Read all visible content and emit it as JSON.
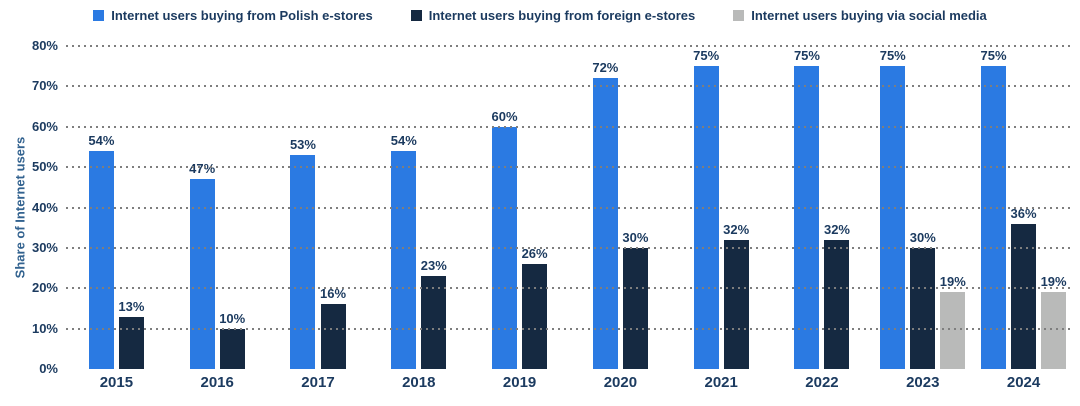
{
  "chart": {
    "y_axis_title": "Share of Internet users"
  },
  "colors": {
    "background": "#ffffff",
    "grid": "#7e7e7e",
    "label_text": "#1b3a5f",
    "axis_title_text": "#32628f",
    "series_polish": "#2b7ae2",
    "series_foreign": "#152941",
    "series_social": "#b9bab9"
  },
  "chart_data": {
    "type": "bar",
    "title": "",
    "xlabel": "",
    "ylabel": "Share of Internet users",
    "ylim": [
      0,
      80
    ],
    "ytick_step": 10,
    "ytick_suffix": "%",
    "grid": "horizontal-dotted",
    "legend_position": "top",
    "data_label_suffix": "%",
    "categories": [
      "2015",
      "2016",
      "2017",
      "2018",
      "2019",
      "2020",
      "2021",
      "2022",
      "2023",
      "2024"
    ],
    "series": [
      {
        "name": "Internet users buying from Polish e-stores",
        "color": "#2b7ae2",
        "values": [
          54,
          47,
          53,
          54,
          60,
          72,
          75,
          75,
          75,
          75
        ]
      },
      {
        "name": "Internet users buying from foreign e-stores",
        "color": "#152941",
        "values": [
          13,
          10,
          16,
          23,
          26,
          30,
          32,
          32,
          30,
          36
        ]
      },
      {
        "name": "Internet users buying via social media",
        "color": "#b9bab9",
        "values": [
          null,
          null,
          null,
          null,
          null,
          null,
          null,
          null,
          19,
          19
        ]
      }
    ]
  }
}
